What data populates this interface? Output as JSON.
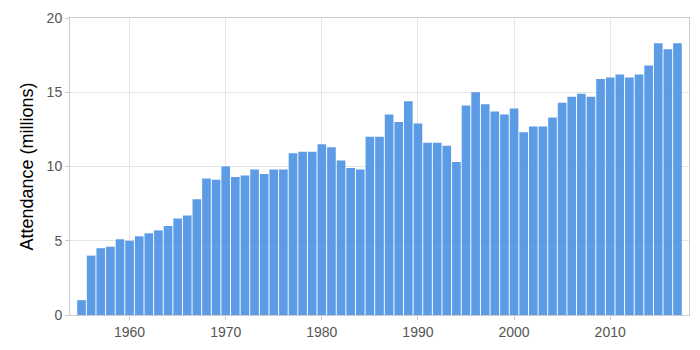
{
  "chart_data": {
    "type": "bar",
    "y_label": "Attendance (millions)",
    "x": [
      1955,
      1956,
      1957,
      1958,
      1959,
      1960,
      1961,
      1962,
      1963,
      1964,
      1965,
      1966,
      1967,
      1968,
      1969,
      1970,
      1971,
      1972,
      1973,
      1974,
      1975,
      1976,
      1977,
      1978,
      1979,
      1980,
      1981,
      1982,
      1983,
      1984,
      1985,
      1986,
      1987,
      1988,
      1989,
      1990,
      1991,
      1992,
      1993,
      1994,
      1995,
      1996,
      1997,
      1998,
      1999,
      2000,
      2001,
      2002,
      2003,
      2004,
      2005,
      2006,
      2007,
      2008,
      2009,
      2010,
      2011,
      2012,
      2013,
      2014,
      2015,
      2016,
      2017
    ],
    "values": [
      1.0,
      4.0,
      4.5,
      4.6,
      5.1,
      5.0,
      5.3,
      5.5,
      5.7,
      6.0,
      6.5,
      6.7,
      7.8,
      9.2,
      9.1,
      10.0,
      9.3,
      9.4,
      9.8,
      9.5,
      9.8,
      9.8,
      10.9,
      11.0,
      11.0,
      11.5,
      11.3,
      10.4,
      9.9,
      9.8,
      12.0,
      12.0,
      13.5,
      13.0,
      14.4,
      12.9,
      11.6,
      11.6,
      11.4,
      10.3,
      14.1,
      15.0,
      14.2,
      13.7,
      13.5,
      13.9,
      12.3,
      12.7,
      12.7,
      13.3,
      14.3,
      14.7,
      14.9,
      14.7,
      15.9,
      16.0,
      16.2,
      16.0,
      16.2,
      16.8,
      18.3,
      17.9,
      18.3
    ],
    "color": "#4a90e2",
    "xlim": [
      1953.8,
      2018.2
    ],
    "xticks": [
      1960,
      1970,
      1980,
      1990,
      2000,
      2010
    ],
    "ylim": [
      0,
      20
    ],
    "yticks": [
      0,
      5,
      10,
      15,
      20
    ],
    "grid": true
  }
}
